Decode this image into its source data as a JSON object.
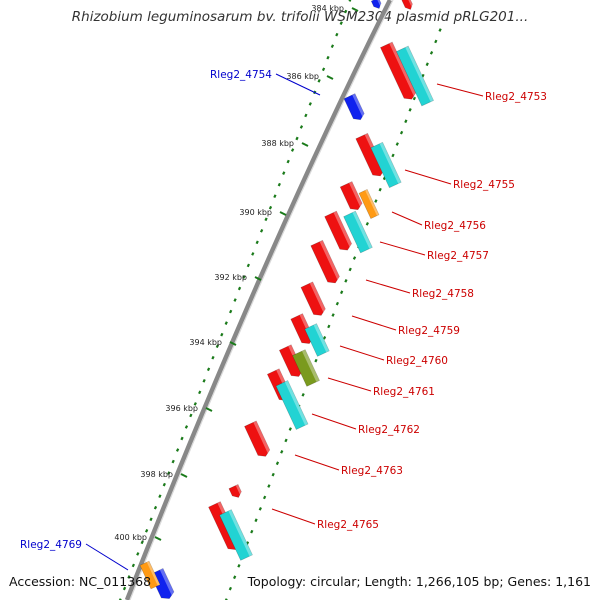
{
  "title": "Rhizobium leguminosarum bv. trifolii WSM2304 plasmid pRLG201...",
  "footer": {
    "accession": "Accession: NC_011368",
    "topology": "Topology: circular; Length: 1,266,105 bp; Genes: 1,161"
  },
  "colors": {
    "red": "#ee1111",
    "cyan": "#22d3d3",
    "orange": "#ff9a14",
    "olive": "#7a9a1e",
    "blue": "#1022ee",
    "gene_label_red": "#cc0000",
    "gene_label_blue": "#0000cc",
    "tick_green": "#1a7a1a",
    "backbone": "#888888"
  },
  "ticks": [
    {
      "label": "384 kbp"
    },
    {
      "label": "386 kbp"
    },
    {
      "label": "388 kbp"
    },
    {
      "label": "390 kbp"
    },
    {
      "label": "392 kbp"
    },
    {
      "label": "394 kbp"
    },
    {
      "label": "396 kbp"
    },
    {
      "label": "398 kbp"
    },
    {
      "label": "400 kbp"
    }
  ],
  "gene_labels": [
    {
      "text": "Rleg2_4753",
      "color": "red"
    },
    {
      "text": "Rleg2_4754",
      "color": "blue"
    },
    {
      "text": "Rleg2_4755",
      "color": "red"
    },
    {
      "text": "Rleg2_4756",
      "color": "red"
    },
    {
      "text": "Rleg2_4757",
      "color": "red"
    },
    {
      "text": "Rleg2_4758",
      "color": "red"
    },
    {
      "text": "Rleg2_4759",
      "color": "red"
    },
    {
      "text": "Rleg2_4760",
      "color": "red"
    },
    {
      "text": "Rleg2_4761",
      "color": "red"
    },
    {
      "text": "Rleg2_4762",
      "color": "red"
    },
    {
      "text": "Rleg2_4763",
      "color": "red"
    },
    {
      "text": "Rleg2_4765",
      "color": "red"
    },
    {
      "text": "Rleg2_4769",
      "color": "blue"
    }
  ]
}
